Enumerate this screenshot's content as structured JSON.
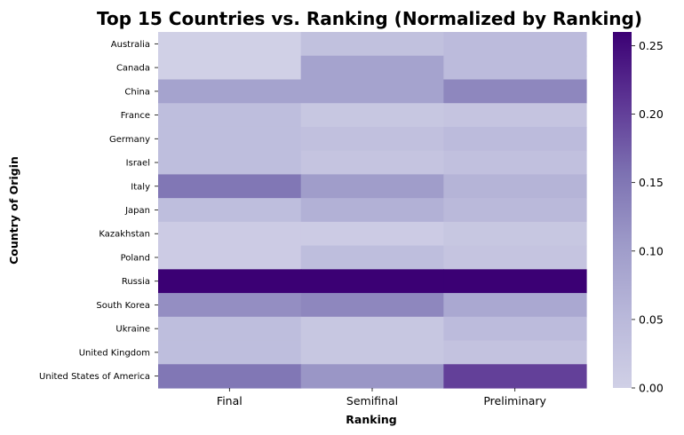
{
  "chart_data": {
    "type": "heatmap",
    "title": "Top 15 Countries vs. Ranking (Normalized by Ranking)",
    "xlabel": "Ranking",
    "ylabel": "Country of Origin",
    "columns": [
      "Final",
      "Semifinal",
      "Preliminary"
    ],
    "rows": [
      "Australia",
      "Canada",
      "China",
      "France",
      "Germany",
      "Israel",
      "Italy",
      "Japan",
      "Kazakhstan",
      "Poland",
      "Russia",
      "South Korea",
      "Ukraine",
      "United Kingdom",
      "United States of America"
    ],
    "values": [
      [
        0.0,
        0.033,
        0.045
      ],
      [
        0.0,
        0.09,
        0.045
      ],
      [
        0.09,
        0.09,
        0.13
      ],
      [
        0.04,
        0.02,
        0.025
      ],
      [
        0.04,
        0.035,
        0.045
      ],
      [
        0.04,
        0.025,
        0.035
      ],
      [
        0.15,
        0.1,
        0.06
      ],
      [
        0.04,
        0.065,
        0.05
      ],
      [
        0.01,
        0.01,
        0.02
      ],
      [
        0.01,
        0.04,
        0.025
      ],
      [
        0.26,
        0.26,
        0.26
      ],
      [
        0.12,
        0.13,
        0.08
      ],
      [
        0.04,
        0.02,
        0.045
      ],
      [
        0.04,
        0.02,
        0.03
      ],
      [
        0.15,
        0.11,
        0.2
      ]
    ],
    "colorbar": {
      "range": [
        0,
        0.26
      ],
      "ticks": [
        "0.00",
        "0.05",
        "0.10",
        "0.15",
        "0.20",
        "0.25"
      ],
      "colormap": "Purples",
      "low_color": "#d0d0e6",
      "high_color": "#3b0074"
    }
  }
}
